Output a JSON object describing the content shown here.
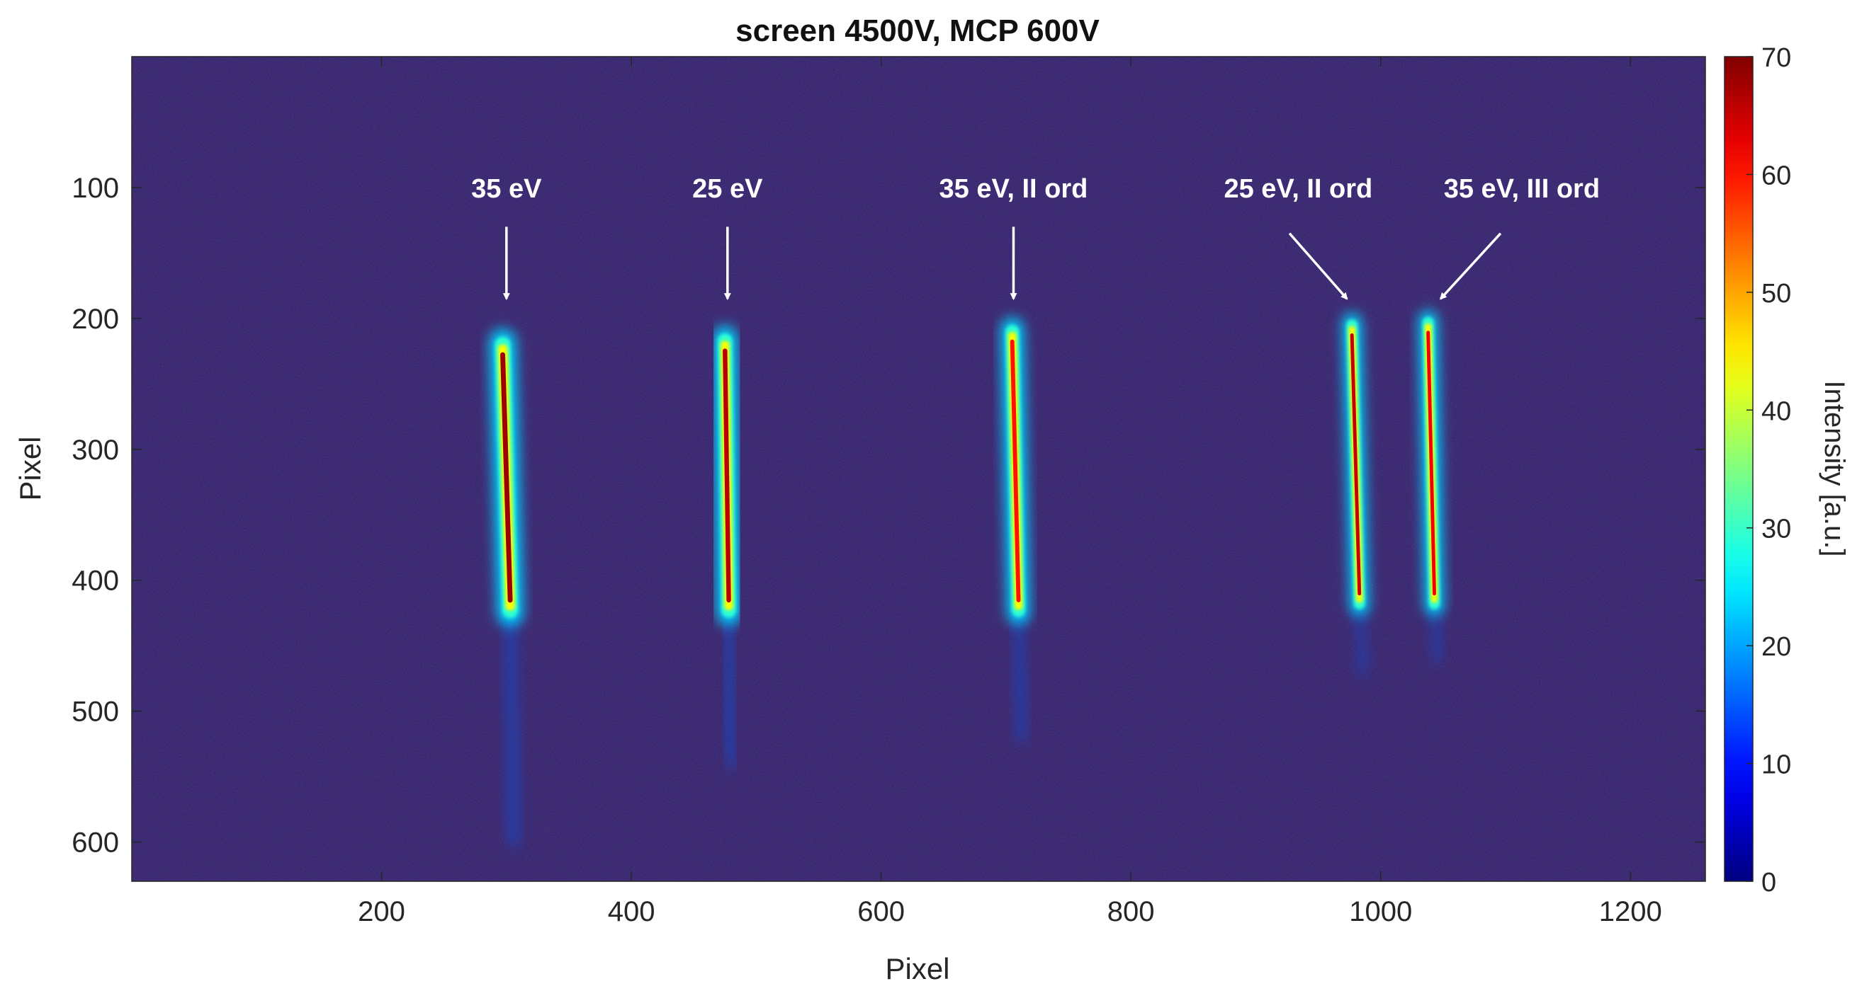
{
  "chart_data": {
    "type": "heatmap",
    "title": "screen 4500V, MCP 600V",
    "xlabel": "Pixel",
    "ylabel": "Pixel",
    "colorbar_label": "Intensity [a.u.]",
    "colormap": "jet",
    "background_color": "#2e1a6b",
    "xlim": [
      0,
      1260
    ],
    "ylim": [
      630,
      0
    ],
    "xticks": [
      200,
      400,
      600,
      800,
      1000,
      1200
    ],
    "yticks": [
      100,
      200,
      300,
      400,
      500,
      600
    ],
    "clim": [
      0,
      70
    ],
    "cticks": [
      0,
      10,
      20,
      30,
      40,
      50,
      60,
      70
    ],
    "lines": [
      {
        "label": "35 eV",
        "x_top": 297,
        "x_bottom": 303,
        "y_start": 218,
        "y_end": 425,
        "peak": 68,
        "width": 14,
        "tail_end": 600
      },
      {
        "label": "25 eV",
        "x_top": 475,
        "x_bottom": 478,
        "y_start": 215,
        "y_end": 425,
        "peak": 66,
        "width": 13,
        "tail_end": 540
      },
      {
        "label": "35 eV, II ord",
        "x_top": 705,
        "x_bottom": 710,
        "y_start": 208,
        "y_end": 425,
        "peak": 60,
        "width": 12,
        "tail_end": 520
      },
      {
        "label": "25 eV, II ord",
        "x_top": 977,
        "x_bottom": 983,
        "y_start": 203,
        "y_end": 420,
        "peak": 65,
        "width": 10,
        "tail_end": 470
      },
      {
        "label": "35 eV, III ord",
        "x_top": 1038,
        "x_bottom": 1043,
        "y_start": 201,
        "y_end": 420,
        "peak": 62,
        "width": 10,
        "tail_end": 460
      }
    ],
    "annotations": [
      {
        "text": "35 eV",
        "text_x": 300,
        "text_y": 100,
        "arrow_from": [
          300,
          130
        ],
        "arrow_to": [
          300,
          185
        ]
      },
      {
        "text": "25 eV",
        "text_x": 477,
        "text_y": 100,
        "arrow_from": [
          477,
          130
        ],
        "arrow_to": [
          477,
          185
        ]
      },
      {
        "text": "35 eV, II ord",
        "text_x": 706,
        "text_y": 100,
        "arrow_from": [
          706,
          130
        ],
        "arrow_to": [
          706,
          185
        ]
      },
      {
        "text": "25 eV, II ord",
        "text_x": 934,
        "text_y": 100,
        "arrow_from": [
          927,
          135
        ],
        "arrow_to": [
          973,
          185
        ]
      },
      {
        "text": "35 eV, III ord",
        "text_x": 1113,
        "text_y": 100,
        "arrow_from": [
          1096,
          135
        ],
        "arrow_to": [
          1048,
          185
        ]
      }
    ],
    "grid": false
  }
}
